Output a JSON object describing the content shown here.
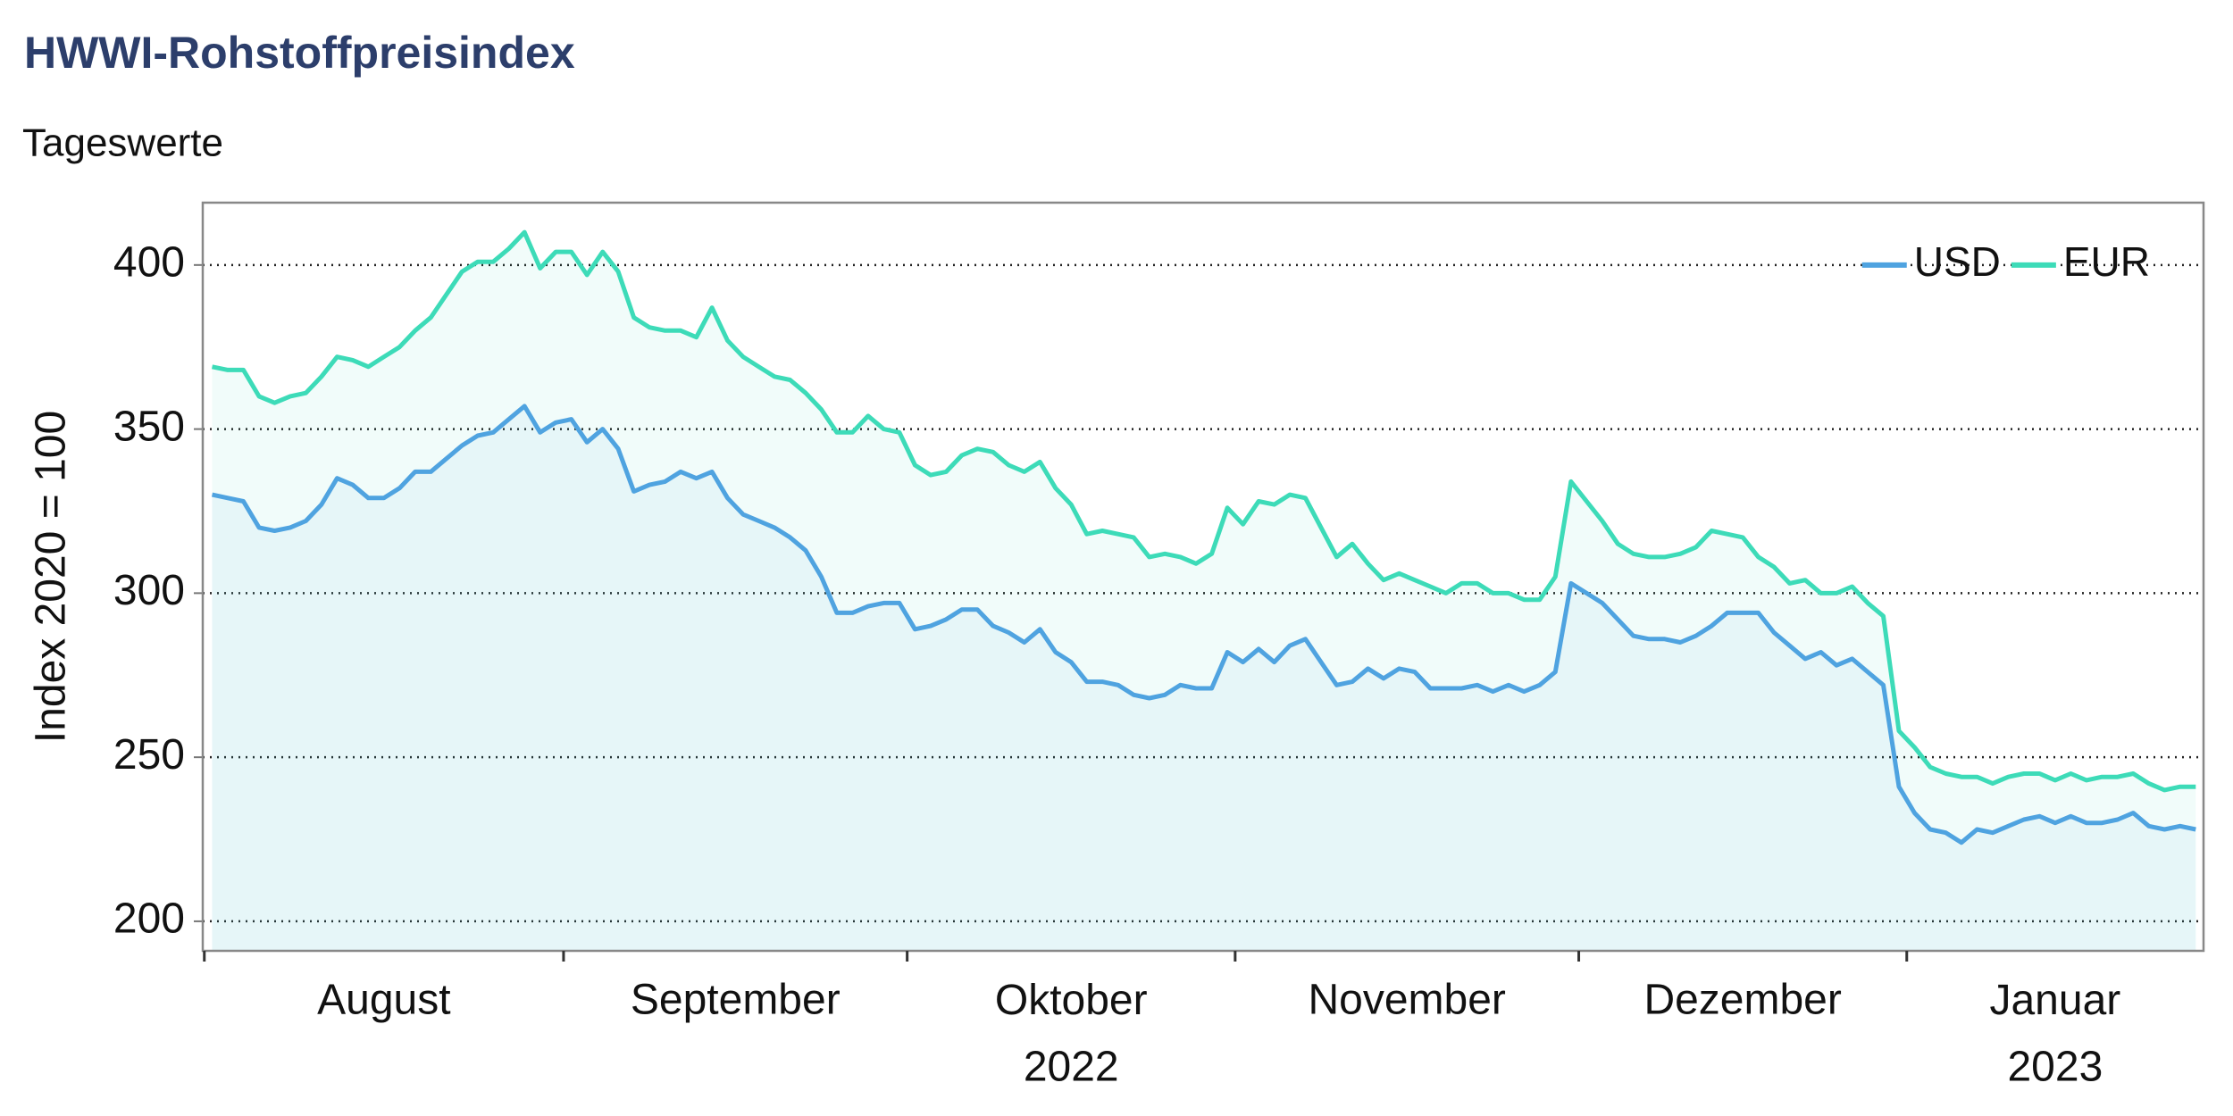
{
  "chart_data": {
    "type": "line",
    "title": "HWWI-Rohstoffpreisindex",
    "subtitle": "Tageswerte",
    "y_label": "Index 2020 = 100",
    "x_labels": [
      "August",
      "September",
      "Oktober\n2022",
      "November",
      "Dezember",
      "Januar\n2023"
    ],
    "xlim": [
      -0.6,
      127.5
    ],
    "xticks": [
      -0.5,
      22.5,
      44.5,
      65.5,
      87.5,
      108.5
    ],
    "ylim": [
      191,
      419
    ],
    "yticks": [
      200,
      250,
      300,
      350,
      400
    ],
    "grid": true,
    "legend": "top-right",
    "series": [
      {
        "name": "USD",
        "color": "#4fa3e0",
        "values": [
          330,
          329,
          328,
          320,
          319,
          320,
          322,
          327,
          335,
          333,
          329,
          329,
          332,
          337,
          337,
          341,
          345,
          348,
          349,
          353,
          357,
          349,
          352,
          353,
          346,
          350,
          344,
          331,
          333,
          334,
          337,
          335,
          337,
          329,
          324,
          322,
          320,
          317,
          313,
          305,
          294,
          294,
          296,
          297,
          297,
          289,
          290,
          292,
          295,
          295,
          290,
          288,
          285,
          289,
          282,
          279,
          273,
          273,
          272,
          269,
          268,
          269,
          272,
          271,
          271,
          282,
          279,
          283,
          279,
          284,
          286,
          279,
          272,
          273,
          277,
          274,
          277,
          276,
          271,
          271,
          271,
          272,
          270,
          272,
          270,
          272,
          276,
          303,
          300,
          297,
          292,
          287,
          286,
          286,
          285,
          287,
          290,
          294,
          294,
          294,
          288,
          284,
          280,
          282,
          278,
          280,
          276,
          272,
          241,
          233,
          228,
          227,
          224,
          228,
          227,
          229,
          231,
          232,
          230,
          232,
          230,
          230,
          231,
          233,
          229,
          228,
          229,
          228
        ]
      },
      {
        "name": "EUR",
        "color": "#3ddbb8",
        "values": [
          369,
          368,
          368,
          360,
          358,
          360,
          361,
          366,
          372,
          371,
          369,
          372,
          375,
          380,
          384,
          391,
          398,
          401,
          401,
          405,
          410,
          399,
          404,
          404,
          397,
          404,
          398,
          384,
          381,
          380,
          380,
          378,
          387,
          377,
          372,
          369,
          366,
          365,
          361,
          356,
          349,
          349,
          354,
          350,
          349,
          339,
          336,
          337,
          342,
          344,
          343,
          339,
          337,
          340,
          332,
          327,
          318,
          319,
          318,
          317,
          311,
          312,
          311,
          309,
          312,
          326,
          321,
          328,
          327,
          330,
          329,
          320,
          311,
          315,
          309,
          304,
          306,
          304,
          302,
          300,
          303,
          303,
          300,
          300,
          298,
          298,
          305,
          334,
          328,
          322,
          315,
          312,
          311,
          311,
          312,
          314,
          319,
          318,
          317,
          311,
          308,
          303,
          304,
          300,
          300,
          302,
          297,
          293,
          258,
          253,
          247,
          245,
          244,
          244,
          242,
          244,
          245,
          245,
          243,
          245,
          243,
          244,
          244,
          245,
          242,
          240,
          241,
          241
        ]
      }
    ]
  }
}
